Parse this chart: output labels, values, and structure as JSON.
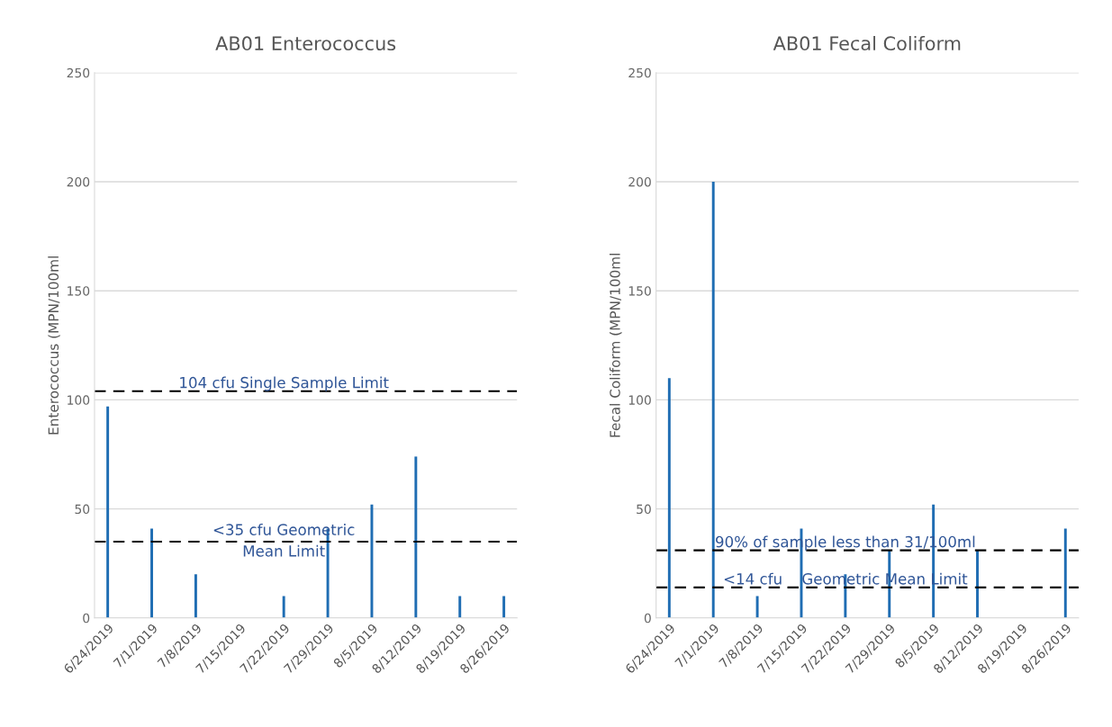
{
  "chart_data": [
    {
      "type": "bar",
      "title": "AB01 Enterococcus",
      "ylabel": "Enterococcus (MPN/100ml",
      "categories": [
        "6/24/2019",
        "7/1/2019",
        "7/8/2019",
        "7/15/2019",
        "7/22/2019",
        "7/29/2019",
        "8/5/2019",
        "8/12/2019",
        "8/19/2019",
        "8/26/2019"
      ],
      "series": [
        {
          "color": "#1f6db3",
          "values": [
            97,
            41,
            20,
            null,
            10,
            41,
            52,
            74,
            10,
            10
          ]
        }
      ],
      "ylim": [
        0,
        250
      ],
      "yticks": [
        0,
        50,
        100,
        150,
        200,
        250
      ],
      "grid": "y",
      "legend": false,
      "ref_lines": [
        {
          "axis": "y",
          "value": 104,
          "label": "104 cfu Single Sample Limit",
          "color": "#000000",
          "line_style": "dashed"
        },
        {
          "axis": "y",
          "value": 35,
          "label": "<35 cfu Geometric\nMean Limit",
          "color": "#000000",
          "line_style": "dashed"
        }
      ]
    },
    {
      "type": "bar",
      "title": "AB01 Fecal Coliform",
      "ylabel": "Fecal Coliform (MPN/100ml",
      "categories": [
        "6/24/2019",
        "7/1/2019",
        "7/8/2019",
        "7/15/2019",
        "7/22/2019",
        "7/29/2019",
        "8/5/2019",
        "8/12/2019",
        "8/19/2019",
        "8/26/2019"
      ],
      "series": [
        {
          "color": "#1f6db3",
          "values": [
            110,
            200,
            10,
            41,
            20,
            31,
            52,
            31,
            null,
            41
          ]
        }
      ],
      "ylim": [
        0,
        250
      ],
      "yticks": [
        0,
        50,
        100,
        150,
        200,
        250
      ],
      "grid": "y",
      "legend": false,
      "ref_lines": [
        {
          "axis": "y",
          "value": 31,
          "label": "90% of sample less than 31/100ml",
          "color": "#000000",
          "line_style": "dashed"
        },
        {
          "axis": "y",
          "value": 14,
          "label": "<14 cfu    Geometric Mean Limit",
          "color": "#000000",
          "line_style": "dashed"
        }
      ]
    }
  ]
}
